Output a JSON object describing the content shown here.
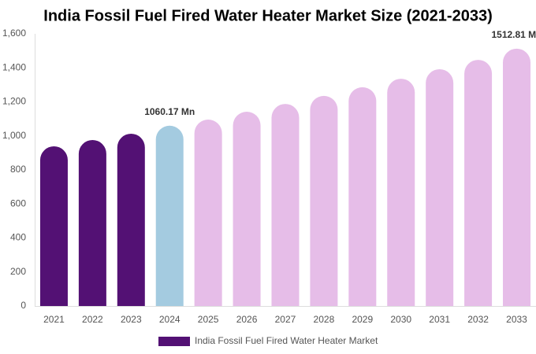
{
  "chart_data": {
    "type": "bar",
    "title": "India Fossil Fuel Fired Water Heater Market Size (2021-2033)",
    "categories": [
      "2021",
      "2022",
      "2023",
      "2024",
      "2025",
      "2026",
      "2027",
      "2028",
      "2029",
      "2030",
      "2031",
      "2032",
      "2033"
    ],
    "series": [
      {
        "name": "India Fossil Fuel Fired Water Heater Market",
        "color": "#531174",
        "values": [
          939,
          976,
          1013,
          1060.17,
          1096,
          1142,
          1188,
          1235,
          1286,
          1336,
          1392,
          1447,
          1512.81
        ],
        "value_labels": [
          null,
          null,
          null,
          "1060.17 Mn",
          null,
          null,
          null,
          null,
          null,
          null,
          null,
          null,
          "1512.81 Mn"
        ],
        "colors": [
          "#531174",
          "#531174",
          "#531174",
          "#a4cbe0",
          "#e6bde8",
          "#e6bde8",
          "#e6bde8",
          "#e6bde8",
          "#e6bde8",
          "#e6bde8",
          "#e6bde8",
          "#e6bde8",
          "#e6bde8"
        ]
      }
    ],
    "ylim": [
      0,
      1600
    ],
    "yticks": [
      0,
      200,
      400,
      600,
      800,
      {
        "value": 1000,
        "label": "1,000"
      },
      {
        "value": 1200,
        "label": "1,200"
      },
      {
        "value": 1400,
        "label": "1,400"
      },
      {
        "value": 1600,
        "label": "1,600"
      }
    ],
    "grid": false
  }
}
